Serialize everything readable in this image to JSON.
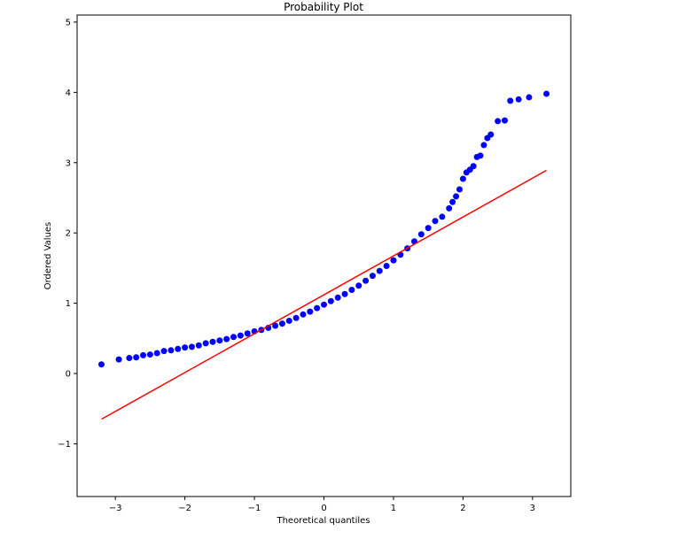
{
  "chart_data": {
    "type": "scatter",
    "title": "Probability Plot",
    "xlabel": "Theoretical quantiles",
    "ylabel": "Ordered Values",
    "xlim": [
      -3.55,
      3.55
    ],
    "ylim": [
      -1.75,
      5.1
    ],
    "xticks": [
      -3,
      -2,
      -1,
      0,
      1,
      2,
      3
    ],
    "xtick_labels": [
      "−3",
      "−2",
      "−1",
      "0",
      "1",
      "2",
      "3"
    ],
    "yticks": [
      -1,
      0,
      1,
      2,
      3,
      4,
      5
    ],
    "ytick_labels": [
      "−1",
      "0",
      "1",
      "2",
      "3",
      "4",
      "5"
    ],
    "grid": false,
    "series": [
      {
        "kind": "points",
        "color": "#0000ff",
        "x": [
          -3.2,
          -2.95,
          -2.8,
          -2.7,
          -2.6,
          -2.5,
          -2.4,
          -2.3,
          -2.2,
          -2.1,
          -2.0,
          -1.9,
          -1.8,
          -1.7,
          -1.6,
          -1.5,
          -1.4,
          -1.3,
          -1.2,
          -1.1,
          -1.0,
          -0.9,
          -0.8,
          -0.7,
          -0.6,
          -0.5,
          -0.4,
          -0.3,
          -0.2,
          -0.1,
          0.0,
          0.1,
          0.2,
          0.3,
          0.4,
          0.5,
          0.6,
          0.7,
          0.8,
          0.9,
          1.0,
          1.1,
          1.2,
          1.3,
          1.4,
          1.5,
          1.6,
          1.7,
          1.8,
          1.85,
          1.9,
          1.95,
          2.0,
          2.05,
          2.1,
          2.15,
          2.2,
          2.25,
          2.3,
          2.35,
          2.4,
          2.5,
          2.6,
          2.68,
          2.8,
          2.95,
          3.2
        ],
        "y": [
          0.13,
          0.2,
          0.22,
          0.23,
          0.26,
          0.27,
          0.29,
          0.32,
          0.33,
          0.35,
          0.37,
          0.38,
          0.4,
          0.43,
          0.45,
          0.47,
          0.49,
          0.52,
          0.54,
          0.57,
          0.6,
          0.62,
          0.65,
          0.68,
          0.71,
          0.75,
          0.79,
          0.84,
          0.88,
          0.93,
          0.98,
          1.03,
          1.08,
          1.13,
          1.19,
          1.25,
          1.32,
          1.39,
          1.46,
          1.53,
          1.61,
          1.69,
          1.78,
          1.88,
          1.98,
          2.07,
          2.17,
          2.23,
          2.35,
          2.44,
          2.52,
          2.62,
          2.77,
          2.86,
          2.9,
          2.95,
          3.08,
          3.1,
          3.25,
          3.35,
          3.4,
          3.59,
          3.6,
          3.88,
          3.9,
          3.93,
          3.98
        ]
      },
      {
        "kind": "fit-line",
        "color": "#ff0000",
        "x": [
          -3.2,
          3.2
        ],
        "y": [
          -0.65,
          2.89
        ]
      }
    ]
  }
}
